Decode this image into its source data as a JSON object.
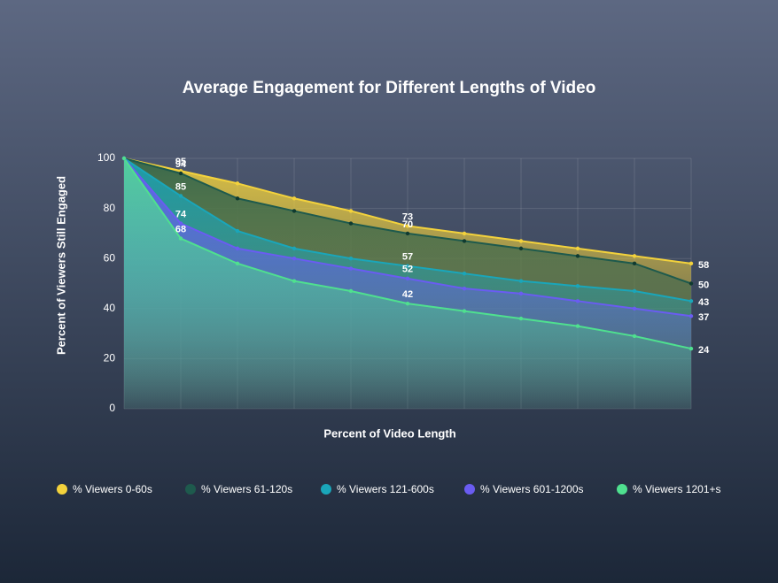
{
  "chart_data": {
    "type": "area",
    "title": "Average Engagement for Different Lengths of Video",
    "x_label": "Percent of Video Length",
    "y_label": "Percent of Viewers Still Engaged",
    "categories": [
      null,
      null,
      null,
      null,
      null,
      null,
      null,
      null,
      null,
      null,
      null
    ],
    "ylim": [
      0,
      100
    ],
    "yticks": [
      0,
      20,
      40,
      60,
      80,
      100
    ],
    "grid": true,
    "legend": "bottom",
    "series": [
      {
        "name": "% Viewers 0-60s",
        "color": "#f3d23c",
        "values": [
          100,
          95,
          90,
          84,
          79,
          73,
          70,
          67,
          64,
          61,
          58
        ]
      },
      {
        "name": "% Viewers 61-120s",
        "color": "#1e5a4d",
        "values": [
          100,
          94,
          84,
          79,
          74,
          70,
          67,
          64,
          61,
          58,
          50
        ]
      },
      {
        "name": "% Viewers 121-600s",
        "color": "#1aa6ba",
        "values": [
          100,
          85,
          71,
          64,
          60,
          57,
          54,
          51,
          49,
          47,
          43
        ]
      },
      {
        "name": "% Viewers 601-1200s",
        "color": "#6a5cf2",
        "values": [
          100,
          74,
          64,
          60,
          56,
          52,
          48,
          46,
          43,
          40,
          37
        ]
      },
      {
        "name": "% Viewers 1201+s",
        "color": "#4fe08f",
        "values": [
          100,
          68,
          58,
          51,
          47,
          42,
          39,
          36,
          33,
          29,
          24
        ]
      }
    ]
  }
}
